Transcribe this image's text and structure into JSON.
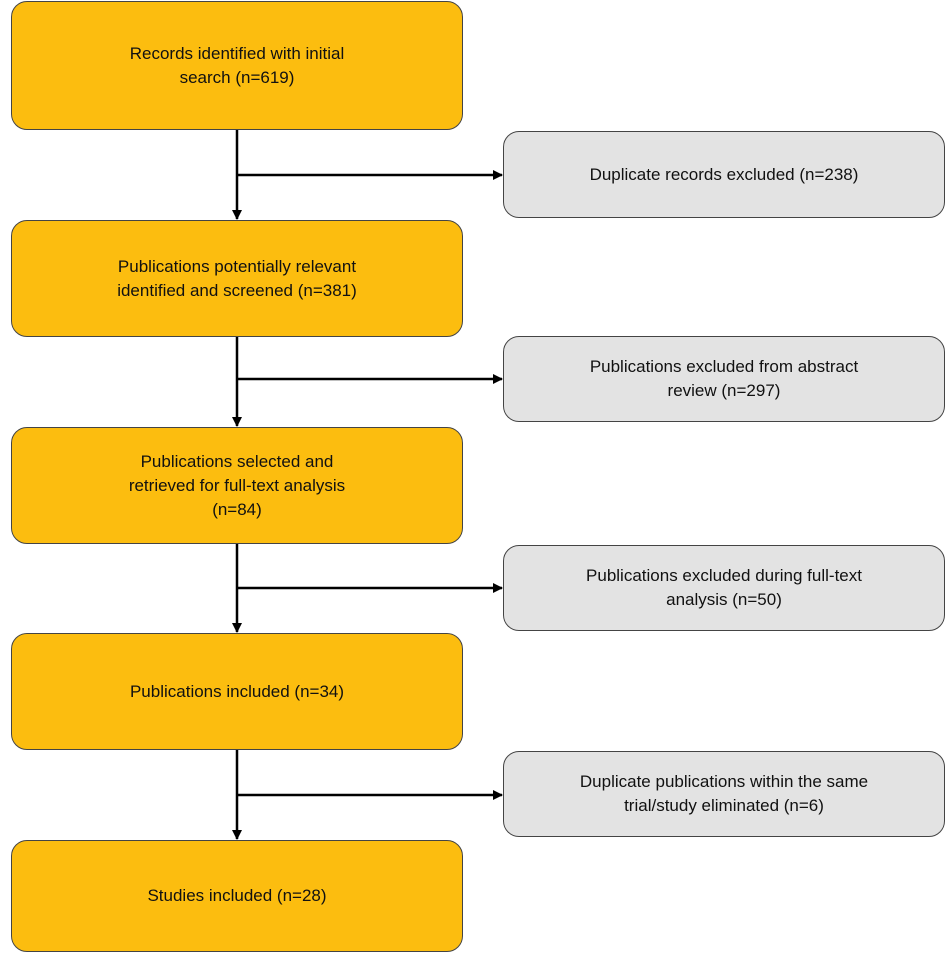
{
  "main_boxes": [
    "Records identified with initial\nsearch (n=619)",
    "Publications potentially relevant\nidentified and screened (n=381)",
    "Publications selected and\nretrieved for full-text analysis\n(n=84)",
    "Publications included (n=34)",
    "Studies included (n=28)"
  ],
  "exclusion_boxes": [
    "Duplicate records excluded (n=238)",
    "Publications excluded from abstract\nreview (n=297)",
    "Publications excluded during full-text\nanalysis (n=50)",
    "Duplicate publications within the same\ntrial/study eliminated (n=6)"
  ],
  "colors": {
    "main_fill": "#fcbd0f",
    "exclusion_fill": "#e3e3e3",
    "line": "#000000"
  }
}
